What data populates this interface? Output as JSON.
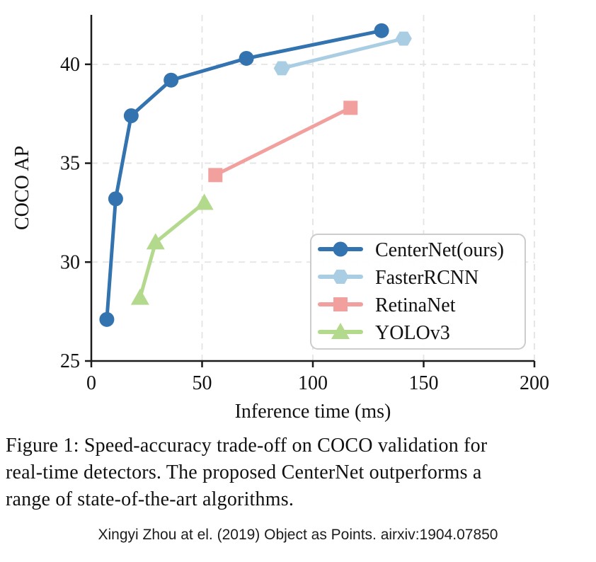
{
  "figure": {
    "caption": {
      "lines": [
        "Figure 1: Speed-accuracy trade-off on COCO validation for",
        "real-time detectors. The proposed CenterNet outperforms a",
        "range of state-of-the-art algorithms."
      ]
    },
    "attribution": "Xingyi Zhou at el. (2019) Object as Points. airxiv:1904.07850"
  },
  "chart_data": {
    "type": "line",
    "title": "",
    "xlabel": "Inference time (ms)",
    "ylabel": "COCO AP",
    "xlim": [
      0,
      200
    ],
    "ylim": [
      25,
      42.5
    ],
    "xticks": [
      0,
      50,
      100,
      150,
      200
    ],
    "yticks": [
      25,
      30,
      35,
      40
    ],
    "grid": true,
    "grid_style": "dashed",
    "legend_position": "inside lower-right",
    "style": {
      "axis_color": "#1a1a1a",
      "grid_color": "#e4e4e4",
      "legend_border_color": "#cccccc",
      "legend_background": "rgba(255,255,255,0.92)",
      "text_color": "#111111"
    },
    "series": [
      {
        "name": "CenterNet(ours)",
        "marker": "circle",
        "color": "#3273b0",
        "points": [
          [
            7,
            27.1
          ],
          [
            11,
            33.2
          ],
          [
            18,
            37.4
          ],
          [
            36,
            39.2
          ],
          [
            70,
            40.3
          ],
          [
            131,
            41.7
          ]
        ]
      },
      {
        "name": "FasterRCNN",
        "marker": "hexagon",
        "color": "#a9cde3",
        "points": [
          [
            86,
            39.8
          ],
          [
            141,
            41.3
          ]
        ]
      },
      {
        "name": "RetinaNet",
        "marker": "square",
        "color": "#f2a09e",
        "points": [
          [
            56,
            34.4
          ],
          [
            117,
            37.8
          ]
        ]
      },
      {
        "name": "YOLOv3",
        "marker": "triangle-up",
        "color": "#b3d98c",
        "points": [
          [
            22,
            28.2
          ],
          [
            29,
            31.0
          ],
          [
            51,
            33.0
          ]
        ]
      }
    ]
  }
}
